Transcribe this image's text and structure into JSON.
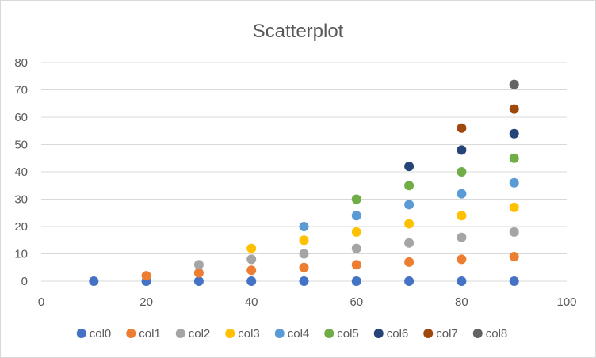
{
  "chart_data": {
    "type": "scatter",
    "title": "Scatterplot",
    "xlabel": "",
    "ylabel": "",
    "xlim": [
      0,
      100
    ],
    "ylim": [
      0,
      80
    ],
    "xticks": [
      0,
      20,
      40,
      60,
      80,
      100
    ],
    "yticks": [
      0,
      10,
      20,
      30,
      40,
      50,
      60,
      70,
      80
    ],
    "grid": "horizontal",
    "legend": "bottom",
    "series": [
      {
        "name": "col0",
        "color": "#4472c4",
        "points": [
          [
            10,
            0
          ],
          [
            20,
            0
          ],
          [
            30,
            0
          ],
          [
            40,
            0
          ],
          [
            50,
            0
          ],
          [
            60,
            0
          ],
          [
            70,
            0
          ],
          [
            80,
            0
          ],
          [
            90,
            0
          ]
        ]
      },
      {
        "name": "col1",
        "color": "#ed7d31",
        "points": [
          [
            20,
            2
          ],
          [
            30,
            3
          ],
          [
            40,
            4
          ],
          [
            50,
            5
          ],
          [
            60,
            6
          ],
          [
            70,
            7
          ],
          [
            80,
            8
          ],
          [
            90,
            9
          ]
        ]
      },
      {
        "name": "col2",
        "color": "#a5a5a5",
        "points": [
          [
            30,
            6
          ],
          [
            40,
            8
          ],
          [
            50,
            10
          ],
          [
            60,
            12
          ],
          [
            70,
            14
          ],
          [
            80,
            16
          ],
          [
            90,
            18
          ]
        ]
      },
      {
        "name": "col3",
        "color": "#ffc000",
        "points": [
          [
            40,
            12
          ],
          [
            50,
            15
          ],
          [
            60,
            18
          ],
          [
            70,
            21
          ],
          [
            80,
            24
          ],
          [
            90,
            27
          ]
        ]
      },
      {
        "name": "col4",
        "color": "#5b9bd5",
        "points": [
          [
            50,
            20
          ],
          [
            60,
            24
          ],
          [
            70,
            28
          ],
          [
            80,
            32
          ],
          [
            90,
            36
          ]
        ]
      },
      {
        "name": "col5",
        "color": "#70ad47",
        "points": [
          [
            60,
            30
          ],
          [
            70,
            35
          ],
          [
            80,
            40
          ],
          [
            90,
            45
          ]
        ]
      },
      {
        "name": "col6",
        "color": "#264478",
        "points": [
          [
            70,
            42
          ],
          [
            80,
            48
          ],
          [
            90,
            54
          ]
        ]
      },
      {
        "name": "col7",
        "color": "#9e480e",
        "points": [
          [
            80,
            56
          ],
          [
            90,
            63
          ]
        ]
      },
      {
        "name": "col8",
        "color": "#636363",
        "points": [
          [
            90,
            72
          ]
        ]
      }
    ]
  }
}
